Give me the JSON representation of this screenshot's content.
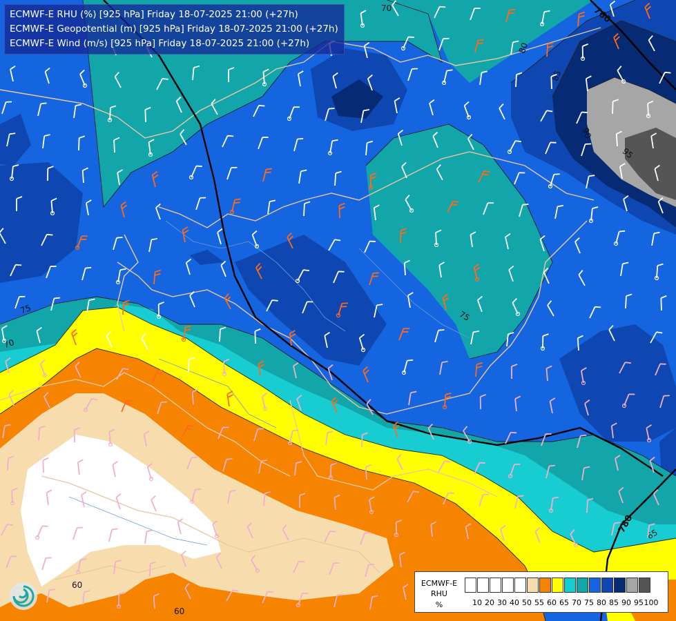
{
  "header": {
    "line1": "ECMWF-E RHU (%) [925 hPa] Friday 18-07-2025 21:00 (+27h)",
    "line2": "ECMWF-E Geopotential (m) [925 hPa] Friday 18-07-2025 21:00 (+27h)",
    "line3": "ECMWF-E Wind (m/s) [925 hPa] Friday 18-07-2025 21:00 (+27h)"
  },
  "legend": {
    "title_line1": "ECMWF-E",
    "title_line2": "RHU",
    "title_line3": "%",
    "ticks": [
      "10",
      "20",
      "30",
      "40",
      "50",
      "55",
      "60",
      "65",
      "70",
      "75",
      "80",
      "85",
      "90",
      "95",
      "100"
    ],
    "colors": [
      "#ffffff",
      "#ffffff",
      "#ffffff",
      "#ffffff",
      "#ffffff",
      "#f7dcae",
      "#f78400",
      "#ffff00",
      "#17cdd2",
      "#12a6ab",
      "#1565e0",
      "#0f47b2",
      "#062a73",
      "#a6a6a6",
      "#555555"
    ]
  },
  "contour_labels": {
    "rhu": [
      "70",
      "80",
      "85",
      "90",
      "95",
      "75",
      "70",
      "75",
      "60",
      "60",
      "65"
    ],
    "geopotential": [
      "760",
      "780"
    ]
  },
  "wind_barb_colors": {
    "strong": "#ff6a1a",
    "light": "#f0b0cc",
    "white": "#ffffff"
  },
  "logo": "ecmwf-swirl-icon"
}
